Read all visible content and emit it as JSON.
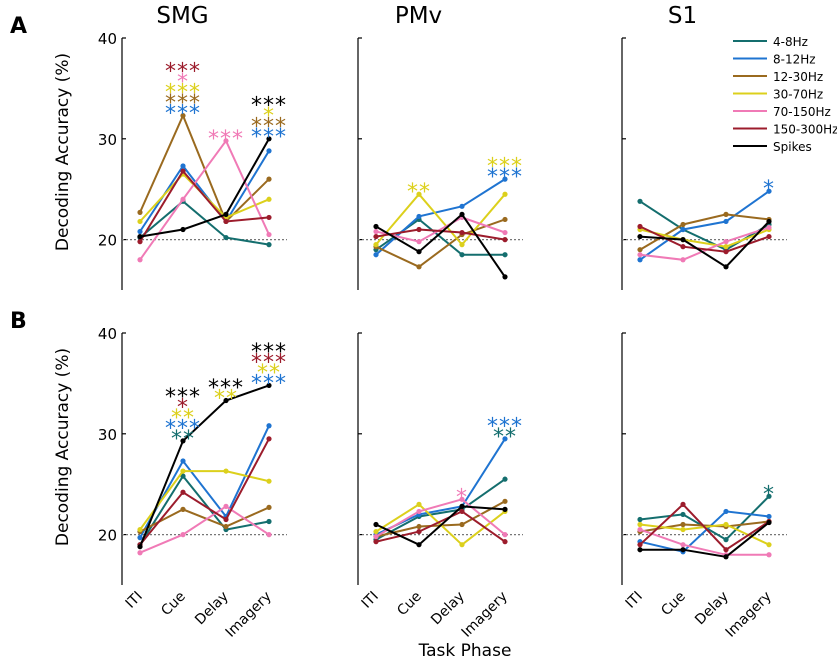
{
  "figure": {
    "xlabel": "Task Phase",
    "ylabel": "Decoding Accuracy (%)"
  },
  "chart_data": {
    "type": "line",
    "rows": [
      "A",
      "B"
    ],
    "columns": [
      "SMG",
      "PMv",
      "S1"
    ],
    "categories": [
      "ITI",
      "Cue",
      "Delay",
      "Imagery"
    ],
    "ylim": [
      15,
      40
    ],
    "yticks": [
      20,
      30,
      40
    ],
    "chance_level": 20,
    "legend_location": "top-right of S1 panel in row A",
    "series_styles": [
      {
        "name": "4-8Hz",
        "color": "#146e6e"
      },
      {
        "name": "8-12Hz",
        "color": "#1f74d1"
      },
      {
        "name": "12-30Hz",
        "color": "#9a6a1f"
      },
      {
        "name": "30-70Hz",
        "color": "#dcd01c"
      },
      {
        "name": "70-150Hz",
        "color": "#f07ab6"
      },
      {
        "name": "150-300Hz",
        "color": "#9c1c2c"
      },
      {
        "name": "Spikes",
        "color": "#000000"
      }
    ],
    "panels": [
      {
        "row": "A",
        "title": "SMG",
        "series": [
          {
            "name": "4-8Hz",
            "values": [
              20.2,
              23.8,
              20.2,
              19.5
            ]
          },
          {
            "name": "8-12Hz",
            "values": [
              20.8,
              27.3,
              21.8,
              28.8
            ]
          },
          {
            "name": "12-30Hz",
            "values": [
              22.7,
              32.3,
              21.8,
              26.0
            ]
          },
          {
            "name": "30-70Hz",
            "values": [
              21.8,
              26.5,
              22.2,
              24.0
            ]
          },
          {
            "name": "70-150Hz",
            "values": [
              18.0,
              24.0,
              29.8,
              20.5
            ]
          },
          {
            "name": "150-300Hz",
            "values": [
              19.8,
              26.8,
              21.8,
              22.2
            ]
          },
          {
            "name": "Spikes",
            "values": [
              20.3,
              21.0,
              22.5,
              30.0
            ]
          }
        ],
        "significance": [
          {
            "phase": "Cue",
            "marks": [
              {
                "label": "***",
                "color": "#9c1c2c"
              },
              {
                "label": "*",
                "color": "#f07ab6"
              },
              {
                "label": "***",
                "color": "#dcd01c"
              },
              {
                "label": "***",
                "color": "#9a6a1f"
              },
              {
                "label": "***",
                "color": "#1f74d1"
              }
            ]
          },
          {
            "phase": "Delay",
            "marks": [
              {
                "label": "***",
                "color": "#f07ab6"
              }
            ]
          },
          {
            "phase": "Imagery",
            "marks": [
              {
                "label": "***",
                "color": "#000000"
              },
              {
                "label": "*",
                "color": "#dcd01c"
              },
              {
                "label": "***",
                "color": "#9a6a1f"
              },
              {
                "label": "***",
                "color": "#1f74d1"
              }
            ]
          }
        ]
      },
      {
        "row": "A",
        "title": "PMv",
        "series": [
          {
            "name": "4-8Hz",
            "values": [
              19.0,
              22.0,
              18.5,
              18.5
            ]
          },
          {
            "name": "8-12Hz",
            "values": [
              18.5,
              22.3,
              23.3,
              26.0
            ]
          },
          {
            "name": "12-30Hz",
            "values": [
              19.3,
              17.3,
              20.5,
              22.0
            ]
          },
          {
            "name": "30-70Hz",
            "values": [
              19.5,
              24.5,
              19.5,
              24.5
            ]
          },
          {
            "name": "70-150Hz",
            "values": [
              20.8,
              19.8,
              22.2,
              20.7
            ]
          },
          {
            "name": "150-300Hz",
            "values": [
              20.3,
              21.0,
              20.7,
              20.0
            ]
          },
          {
            "name": "Spikes",
            "values": [
              21.3,
              18.8,
              22.5,
              16.3
            ]
          }
        ],
        "significance": [
          {
            "phase": "Cue",
            "marks": [
              {
                "label": "**",
                "color": "#dcd01c"
              }
            ]
          },
          {
            "phase": "Imagery",
            "marks": [
              {
                "label": "***",
                "color": "#dcd01c"
              },
              {
                "label": "***",
                "color": "#1f74d1"
              }
            ]
          }
        ]
      },
      {
        "row": "A",
        "title": "S1",
        "series": [
          {
            "name": "4-8Hz",
            "values": [
              23.8,
              21.0,
              19.0,
              21.5
            ]
          },
          {
            "name": "8-12Hz",
            "values": [
              18.0,
              21.0,
              21.8,
              24.8
            ]
          },
          {
            "name": "12-30Hz",
            "values": [
              19.0,
              21.5,
              22.5,
              22.0
            ]
          },
          {
            "name": "30-70Hz",
            "values": [
              21.0,
              20.0,
              19.3,
              21.0
            ]
          },
          {
            "name": "70-150Hz",
            "values": [
              18.5,
              18.0,
              19.8,
              21.2
            ]
          },
          {
            "name": "150-300Hz",
            "values": [
              21.3,
              19.3,
              18.8,
              20.3
            ]
          },
          {
            "name": "Spikes",
            "values": [
              20.3,
              20.0,
              17.3,
              21.8
            ]
          }
        ],
        "significance": [
          {
            "phase": "Imagery",
            "marks": [
              {
                "label": "*",
                "color": "#1f74d1"
              }
            ]
          }
        ]
      },
      {
        "row": "B",
        "title": "SMG",
        "series": [
          {
            "name": "4-8Hz",
            "values": [
              19.0,
              25.8,
              20.5,
              21.3
            ]
          },
          {
            "name": "8-12Hz",
            "values": [
              19.7,
              27.3,
              21.8,
              30.8
            ]
          },
          {
            "name": "12-30Hz",
            "values": [
              20.3,
              22.5,
              20.8,
              22.7
            ]
          },
          {
            "name": "30-70Hz",
            "values": [
              20.5,
              26.3,
              26.3,
              25.3
            ]
          },
          {
            "name": "70-150Hz",
            "values": [
              18.2,
              20.0,
              22.8,
              20.0
            ]
          },
          {
            "name": "150-300Hz",
            "values": [
              19.0,
              24.2,
              21.5,
              29.5
            ]
          },
          {
            "name": "Spikes",
            "values": [
              18.8,
              29.3,
              33.3,
              34.8
            ]
          }
        ],
        "significance": [
          {
            "phase": "Cue",
            "marks": [
              {
                "label": "***",
                "color": "#000000"
              },
              {
                "label": "*",
                "color": "#9c1c2c"
              },
              {
                "label": "**",
                "color": "#dcd01c"
              },
              {
                "label": "***",
                "color": "#1f74d1"
              },
              {
                "label": "**",
                "color": "#146e6e"
              }
            ]
          },
          {
            "phase": "Delay",
            "marks": [
              {
                "label": "***",
                "color": "#000000"
              },
              {
                "label": "**",
                "color": "#dcd01c"
              }
            ]
          },
          {
            "phase": "Imagery",
            "marks": [
              {
                "label": "***",
                "color": "#000000"
              },
              {
                "label": "***",
                "color": "#9c1c2c"
              },
              {
                "label": "**",
                "color": "#dcd01c"
              },
              {
                "label": "***",
                "color": "#1f74d1"
              }
            ]
          }
        ]
      },
      {
        "row": "B",
        "title": "PMv",
        "series": [
          {
            "name": "4-8Hz",
            "values": [
              19.5,
              21.8,
              22.5,
              25.5
            ]
          },
          {
            "name": "8-12Hz",
            "values": [
              20.0,
              22.0,
              22.8,
              29.5
            ]
          },
          {
            "name": "12-30Hz",
            "values": [
              19.8,
              20.8,
              21.0,
              23.3
            ]
          },
          {
            "name": "30-70Hz",
            "values": [
              20.3,
              23.0,
              19.0,
              22.3
            ]
          },
          {
            "name": "70-150Hz",
            "values": [
              19.8,
              22.3,
              23.5,
              20.0
            ]
          },
          {
            "name": "150-300Hz",
            "values": [
              19.3,
              20.3,
              22.3,
              19.3
            ]
          },
          {
            "name": "Spikes",
            "values": [
              21.0,
              19.0,
              22.8,
              22.5
            ]
          }
        ],
        "significance": [
          {
            "phase": "Delay",
            "marks": [
              {
                "label": "*",
                "color": "#f07ab6"
              }
            ]
          },
          {
            "phase": "Imagery",
            "marks": [
              {
                "label": "***",
                "color": "#1f74d1"
              },
              {
                "label": "**",
                "color": "#146e6e"
              }
            ]
          }
        ]
      },
      {
        "row": "B",
        "title": "S1",
        "series": [
          {
            "name": "4-8Hz",
            "values": [
              21.5,
              22.0,
              19.5,
              23.8
            ]
          },
          {
            "name": "8-12Hz",
            "values": [
              19.3,
              18.3,
              22.3,
              21.8
            ]
          },
          {
            "name": "12-30Hz",
            "values": [
              20.3,
              21.0,
              20.8,
              21.3
            ]
          },
          {
            "name": "30-70Hz",
            "values": [
              21.0,
              20.5,
              21.0,
              19.0
            ]
          },
          {
            "name": "70-150Hz",
            "values": [
              20.5,
              19.0,
              18.0,
              18.0
            ]
          },
          {
            "name": "150-300Hz",
            "values": [
              19.0,
              23.0,
              18.5,
              21.3
            ]
          },
          {
            "name": "Spikes",
            "values": [
              18.5,
              18.5,
              17.8,
              21.2
            ]
          }
        ],
        "significance": [
          {
            "phase": "Imagery",
            "marks": [
              {
                "label": "*",
                "color": "#146e6e"
              }
            ]
          }
        ]
      }
    ]
  }
}
